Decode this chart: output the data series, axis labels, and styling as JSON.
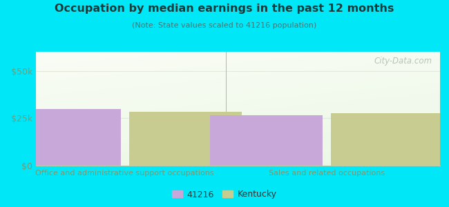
{
  "title": "Occupation by median earnings in the past 12 months",
  "subtitle": "(Note: State values scaled to 41216 population)",
  "categories": [
    "Office and administrative support occupations",
    "Sales and related occupations"
  ],
  "values_41216": [
    30000,
    26500
  ],
  "values_kentucky": [
    28500,
    27500
  ],
  "bar_color_41216": "#c8a8d8",
  "bar_color_kentucky": "#c8cc90",
  "ylim": [
    0,
    60000
  ],
  "yticks": [
    0,
    25000,
    50000
  ],
  "ytick_labels": [
    "$0",
    "$25k",
    "$50k"
  ],
  "background_outer": "#00e8f8",
  "watermark": "City-Data.com",
  "legend_labels": [
    "41216",
    "Kentucky"
  ],
  "bar_width": 0.28,
  "group_positions": [
    0.22,
    0.72
  ],
  "title_color": "#1a3a3a",
  "subtitle_color": "#3a7a7a",
  "tick_color": "#779977",
  "grid_color": "#ddeecc"
}
